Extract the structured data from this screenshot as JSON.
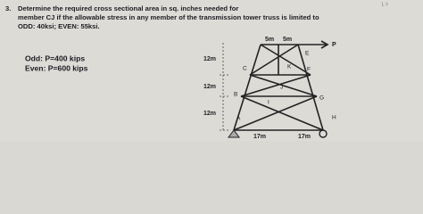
{
  "problem": {
    "number": "3.",
    "text_lines": [
      "Determine the required cross sectional area in sq. inches needed for",
      "member CJ if the allowable stress in any member of the transmission tower truss is limited to",
      "ODD: 40ksi; EVEN: 55ksi."
    ]
  },
  "corner_note": "L =",
  "loads": {
    "odd": "Odd: P=400 kips",
    "even": "Even: P=600 kips"
  },
  "dimensions": {
    "top": [
      "5m",
      "5m"
    ],
    "heights": [
      "12m",
      "12m",
      "12m"
    ],
    "bottom": [
      "17m",
      "17m"
    ]
  },
  "nodes": {
    "A": "A",
    "B": "B",
    "C": "C",
    "E": "E",
    "F": "F",
    "G": "G",
    "H": "H",
    "I": "I",
    "J": "J",
    "K": "K",
    "P": "P"
  }
}
